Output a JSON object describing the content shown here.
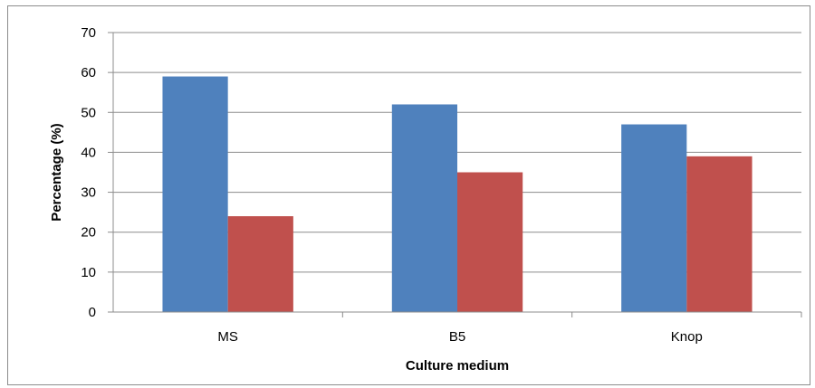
{
  "chart_data": {
    "type": "bar",
    "title": "",
    "xlabel": "Culture medium",
    "ylabel": "Percentage (%)",
    "categories": [
      "MS",
      "B5",
      "Knop"
    ],
    "series": [
      {
        "values": [
          59,
          52,
          47
        ],
        "color": "#4f81bd"
      },
      {
        "values": [
          24,
          35,
          39
        ],
        "color": "#c0504d"
      }
    ],
    "ylim": [
      0,
      70
    ],
    "yticks": [
      0,
      10,
      20,
      30,
      40,
      50,
      60,
      70
    ],
    "grid": true,
    "legend": "none"
  }
}
